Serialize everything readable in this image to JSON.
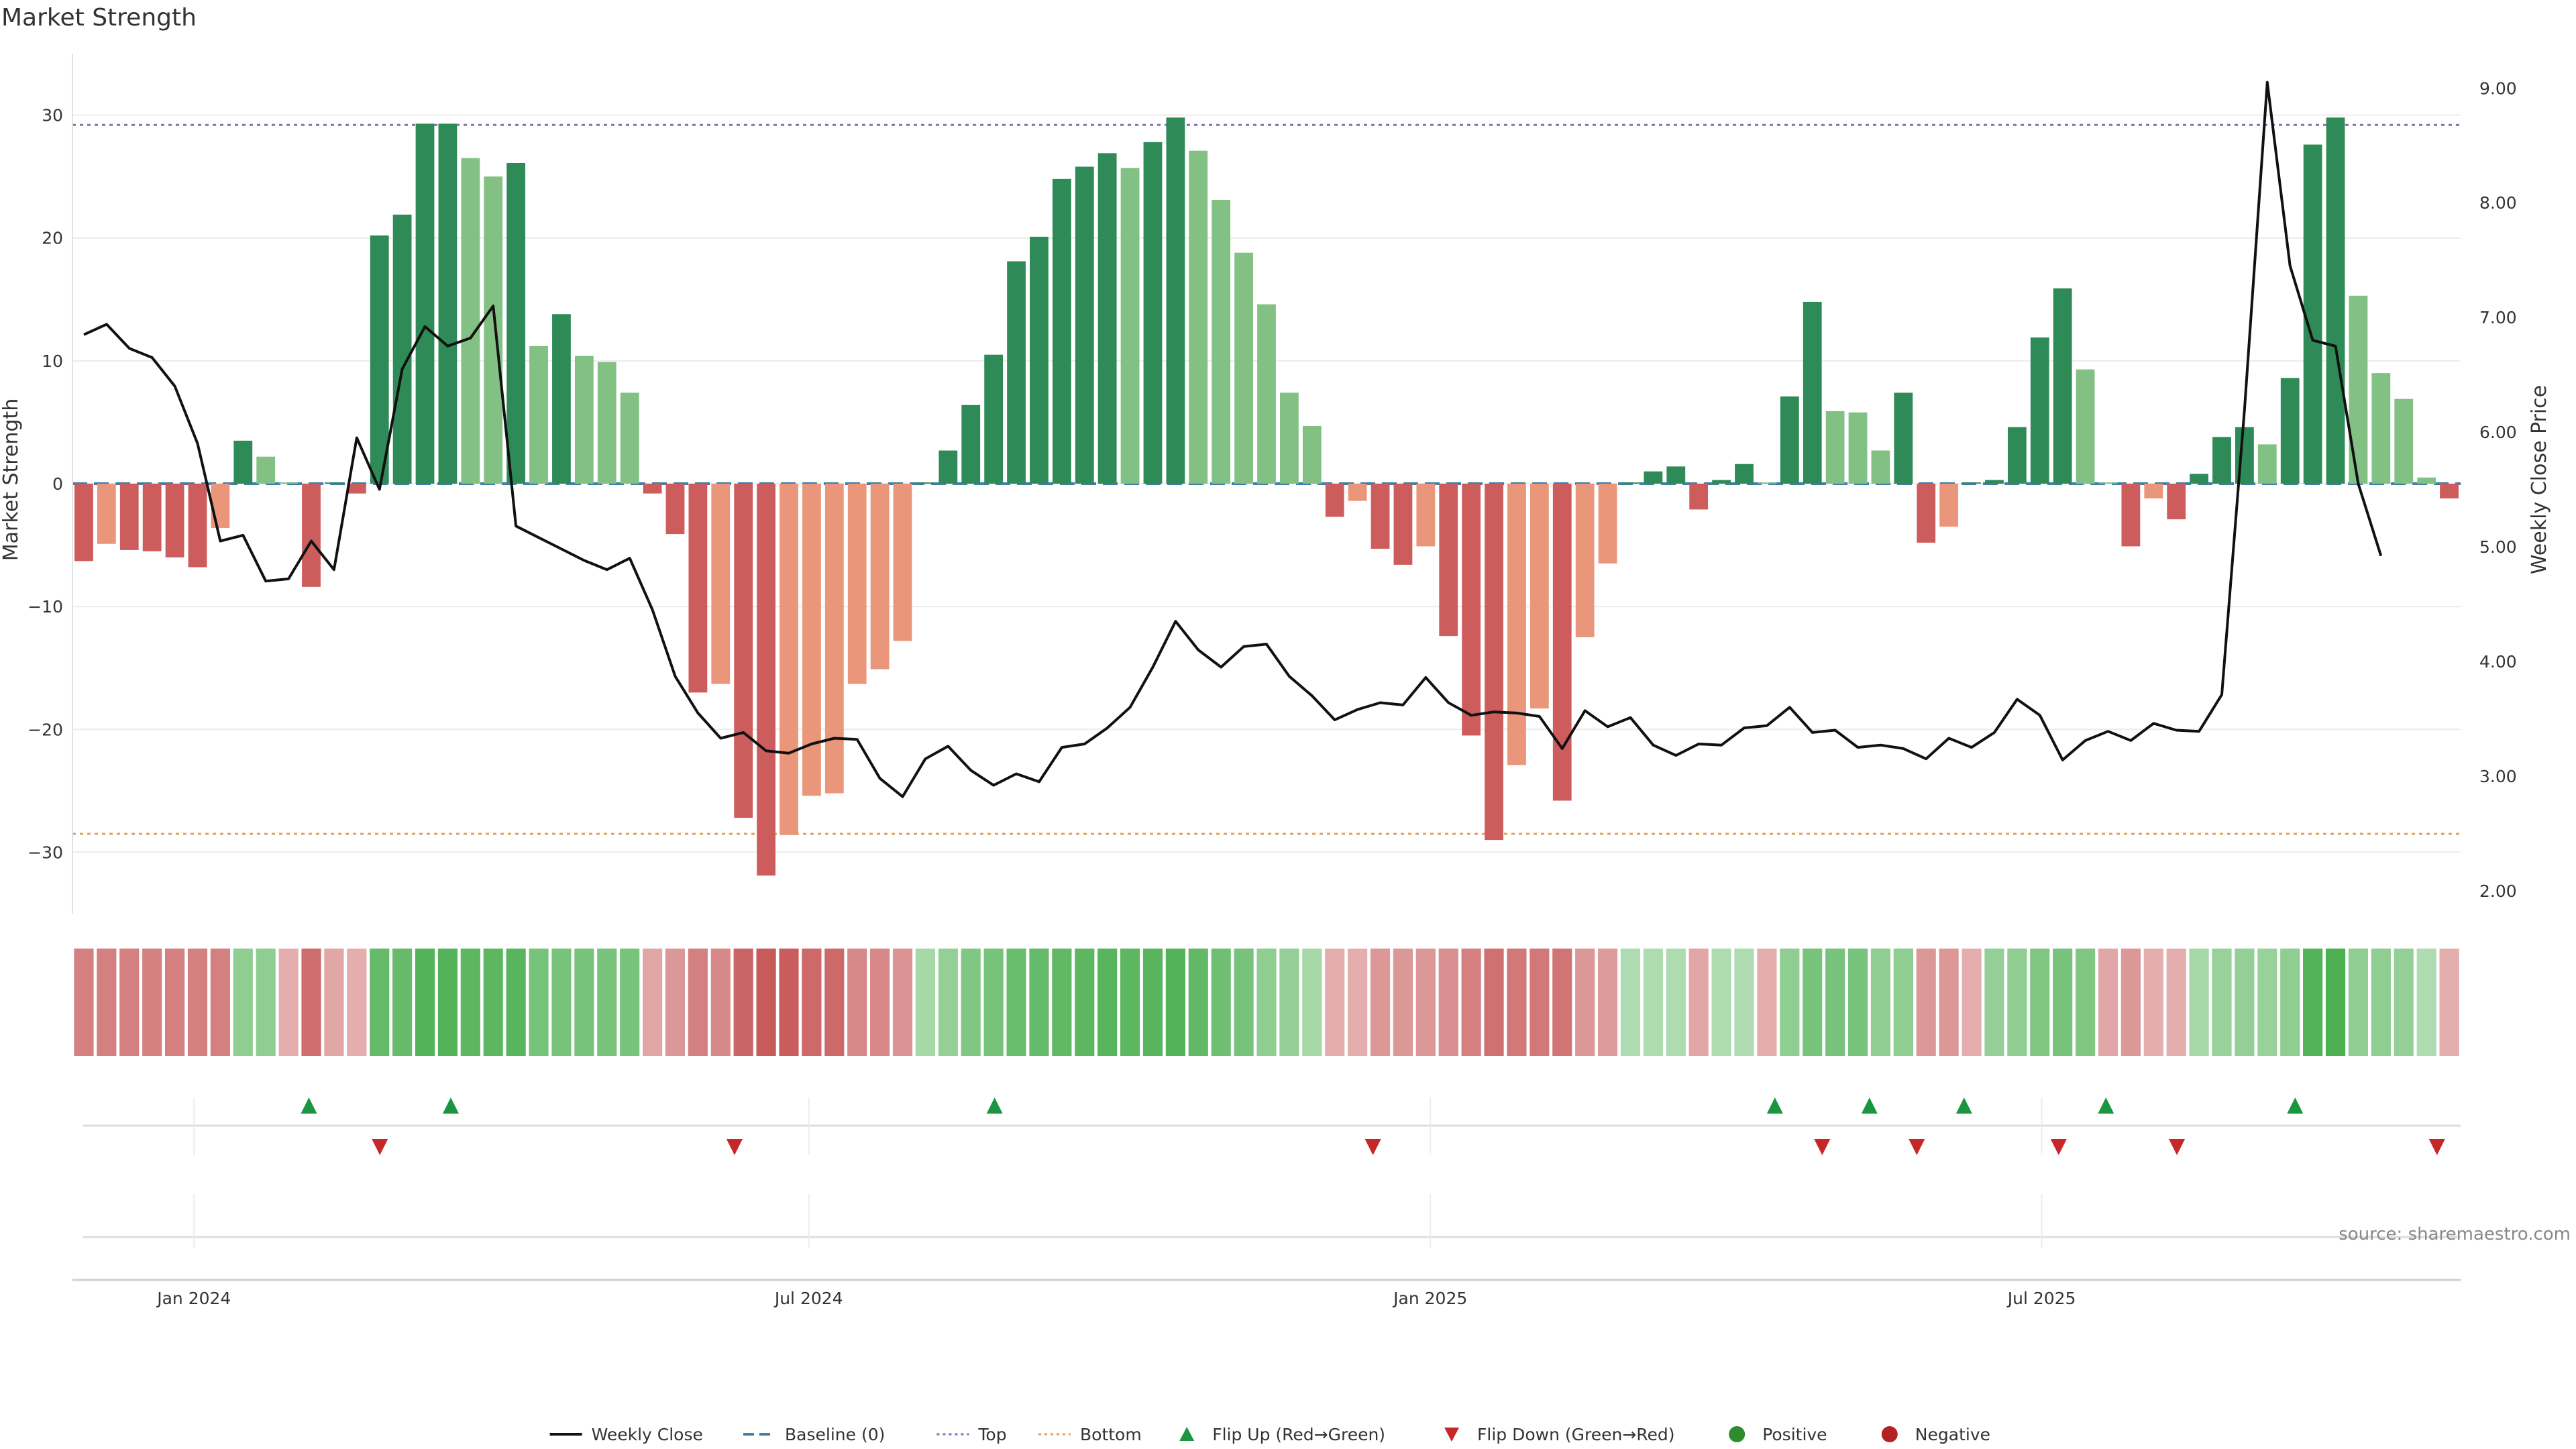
{
  "chart_data": {
    "type": "bar",
    "title": "Market Strength",
    "ylabel": "Market Strength",
    "y2label": "Weekly Close Price",
    "ylim": [
      -35,
      35
    ],
    "y2lim": [
      1.8,
      9.3
    ],
    "yticks": [
      -30,
      -20,
      -10,
      0,
      10,
      20,
      30
    ],
    "y2ticks": [
      "2.00",
      "3.00",
      "4.00",
      "5.00",
      "6.00",
      "7.00",
      "8.00",
      "9.00"
    ],
    "x_start": "2023-11-26",
    "x_end": "2025-11-02",
    "x_ticks": [
      {
        "label": "Jan 2024",
        "date": "2024-01-01"
      },
      {
        "label": "Jul 2024",
        "date": "2024-07-01"
      },
      {
        "label": "Jan 2025",
        "date": "2025-01-01"
      },
      {
        "label": "Jul 2025",
        "date": "2025-07-01"
      }
    ],
    "top_level": 29.2,
    "bottom_level": -28.5,
    "baseline": 0,
    "strength": [
      -6.3,
      -4.9,
      -5.4,
      -5.5,
      -6.0,
      -6.8,
      -3.6,
      3.5,
      2.2,
      0.1,
      -8.4,
      0.1,
      -0.8,
      20.2,
      21.9,
      29.3,
      29.3,
      26.5,
      25.0,
      26.1,
      11.2,
      13.8,
      10.4,
      9.9,
      7.4,
      -0.8,
      -4.1,
      -17.0,
      -16.3,
      -27.2,
      -31.9,
      -28.6,
      -25.4,
      -25.2,
      -16.3,
      -15.1,
      -12.8,
      0.1,
      2.7,
      6.4,
      10.5,
      18.1,
      20.1,
      24.8,
      25.8,
      26.9,
      25.7,
      27.8,
      29.8,
      27.1,
      23.1,
      18.8,
      14.6,
      7.4,
      4.7,
      -2.7,
      -1.4,
      -5.3,
      -6.6,
      -5.1,
      -12.4,
      -20.5,
      -29.0,
      -22.9,
      -18.3,
      -25.8,
      -12.5,
      -6.5,
      0.1,
      1.0,
      1.4,
      -2.1,
      0.3,
      1.6,
      0.1,
      7.1,
      14.8,
      5.9,
      5.8,
      2.7,
      7.4,
      -4.8,
      -3.5,
      0.1,
      0.3,
      4.6,
      11.9,
      15.9,
      9.3,
      0.1,
      -5.1,
      -1.2,
      -2.9,
      0.8,
      3.8,
      4.6,
      3.2,
      8.6,
      27.6,
      29.8,
      15.3,
      9.0,
      6.9,
      0.5,
      -1.2
    ],
    "close": [
      6.85,
      6.94,
      6.73,
      6.65,
      6.4,
      5.9,
      5.05,
      5.1,
      4.7,
      4.72,
      5.05,
      4.8,
      5.95,
      5.5,
      6.55,
      6.92,
      6.75,
      6.82,
      7.1,
      5.18,
      5.08,
      4.98,
      4.88,
      4.8,
      4.9,
      4.45,
      3.87,
      3.55,
      3.33,
      3.38,
      3.22,
      3.2,
      3.28,
      3.33,
      3.32,
      2.98,
      2.82,
      3.15,
      3.26,
      3.05,
      2.92,
      3.02,
      2.95,
      3.25,
      3.28,
      3.42,
      3.6,
      3.95,
      4.35,
      4.1,
      3.95,
      4.13,
      4.15,
      3.87,
      3.7,
      3.49,
      3.58,
      3.64,
      3.62,
      3.86,
      3.64,
      3.53,
      3.56,
      3.55,
      3.52,
      3.24,
      3.57,
      3.43,
      3.51,
      3.27,
      3.18,
      3.28,
      3.27,
      3.42,
      3.44,
      3.6,
      3.38,
      3.4,
      3.25,
      3.27,
      3.24,
      3.15,
      3.33,
      3.25,
      3.38,
      3.67,
      3.53,
      3.14,
      3.31,
      3.39,
      3.31,
      3.46,
      3.4,
      3.39,
      3.71,
      6.2,
      9.05,
      7.45,
      6.8,
      6.75,
      5.55,
      4.92
    ],
    "heat_strength": [
      -20,
      -20,
      -20,
      -20,
      -20,
      -20,
      -20,
      15,
      15,
      -8,
      -25,
      -10,
      -8,
      24,
      24,
      28,
      28,
      26,
      26,
      27,
      20,
      20,
      20,
      20,
      20,
      -10,
      -14,
      -20,
      -18,
      -27,
      -30,
      -29,
      -26,
      -26,
      -18,
      -18,
      -15,
      10,
      14,
      18,
      20,
      23,
      24,
      25,
      26,
      27,
      26,
      27,
      28,
      25,
      22,
      20,
      15,
      14,
      10,
      -8,
      -8,
      -14,
      -14,
      -14,
      -16,
      -20,
      -24,
      -22,
      -22,
      -23,
      -14,
      -13,
      8,
      8,
      8,
      -10,
      8,
      8,
      -8,
      15,
      20,
      20,
      20,
      15,
      15,
      -14,
      -14,
      -8,
      14,
      15,
      18,
      20,
      18,
      -10,
      -14,
      -8,
      -8,
      10,
      13,
      14,
      13,
      15,
      28,
      30,
      15,
      15,
      14,
      8,
      -8
    ],
    "flip_up_dates": [
      "2024-02-04",
      "2024-03-17",
      "2024-08-25",
      "2025-04-13",
      "2025-05-11",
      "2025-06-08",
      "2025-07-20",
      "2025-09-14"
    ],
    "flip_down_dates": [
      "2024-02-25",
      "2024-06-09",
      "2024-12-15",
      "2025-04-27",
      "2025-05-25",
      "2025-07-06",
      "2025-08-10",
      "2025-10-26"
    ],
    "legend": [
      {
        "label": "Weekly Close",
        "kind": "line",
        "color": "#111111"
      },
      {
        "label": "Baseline (0)",
        "kind": "dash",
        "color": "#3f7fa8"
      },
      {
        "label": "Top",
        "kind": "dot",
        "color": "#8e6bb5"
      },
      {
        "label": "Bottom",
        "kind": "dot",
        "color": "#e0a060"
      },
      {
        "label": "Flip Up (Red→Green)",
        "kind": "tri-up",
        "color": "#1a9641"
      },
      {
        "label": "Flip Down (Green→Red)",
        "kind": "tri-down",
        "color": "#c62828"
      },
      {
        "label": "Positive",
        "kind": "circle",
        "color": "#2e8b2e"
      },
      {
        "label": "Negative",
        "kind": "circle",
        "color": "#b22222"
      }
    ],
    "colors": {
      "pos_strong": "#2e8b57",
      "pos_weak": "#82c084",
      "neg_strong": "#cd5c5c",
      "neg_weak": "#e9967a",
      "flip_up": "#1a9641",
      "flip_down": "#c62828"
    },
    "source": "source: sharemaestro.com"
  }
}
